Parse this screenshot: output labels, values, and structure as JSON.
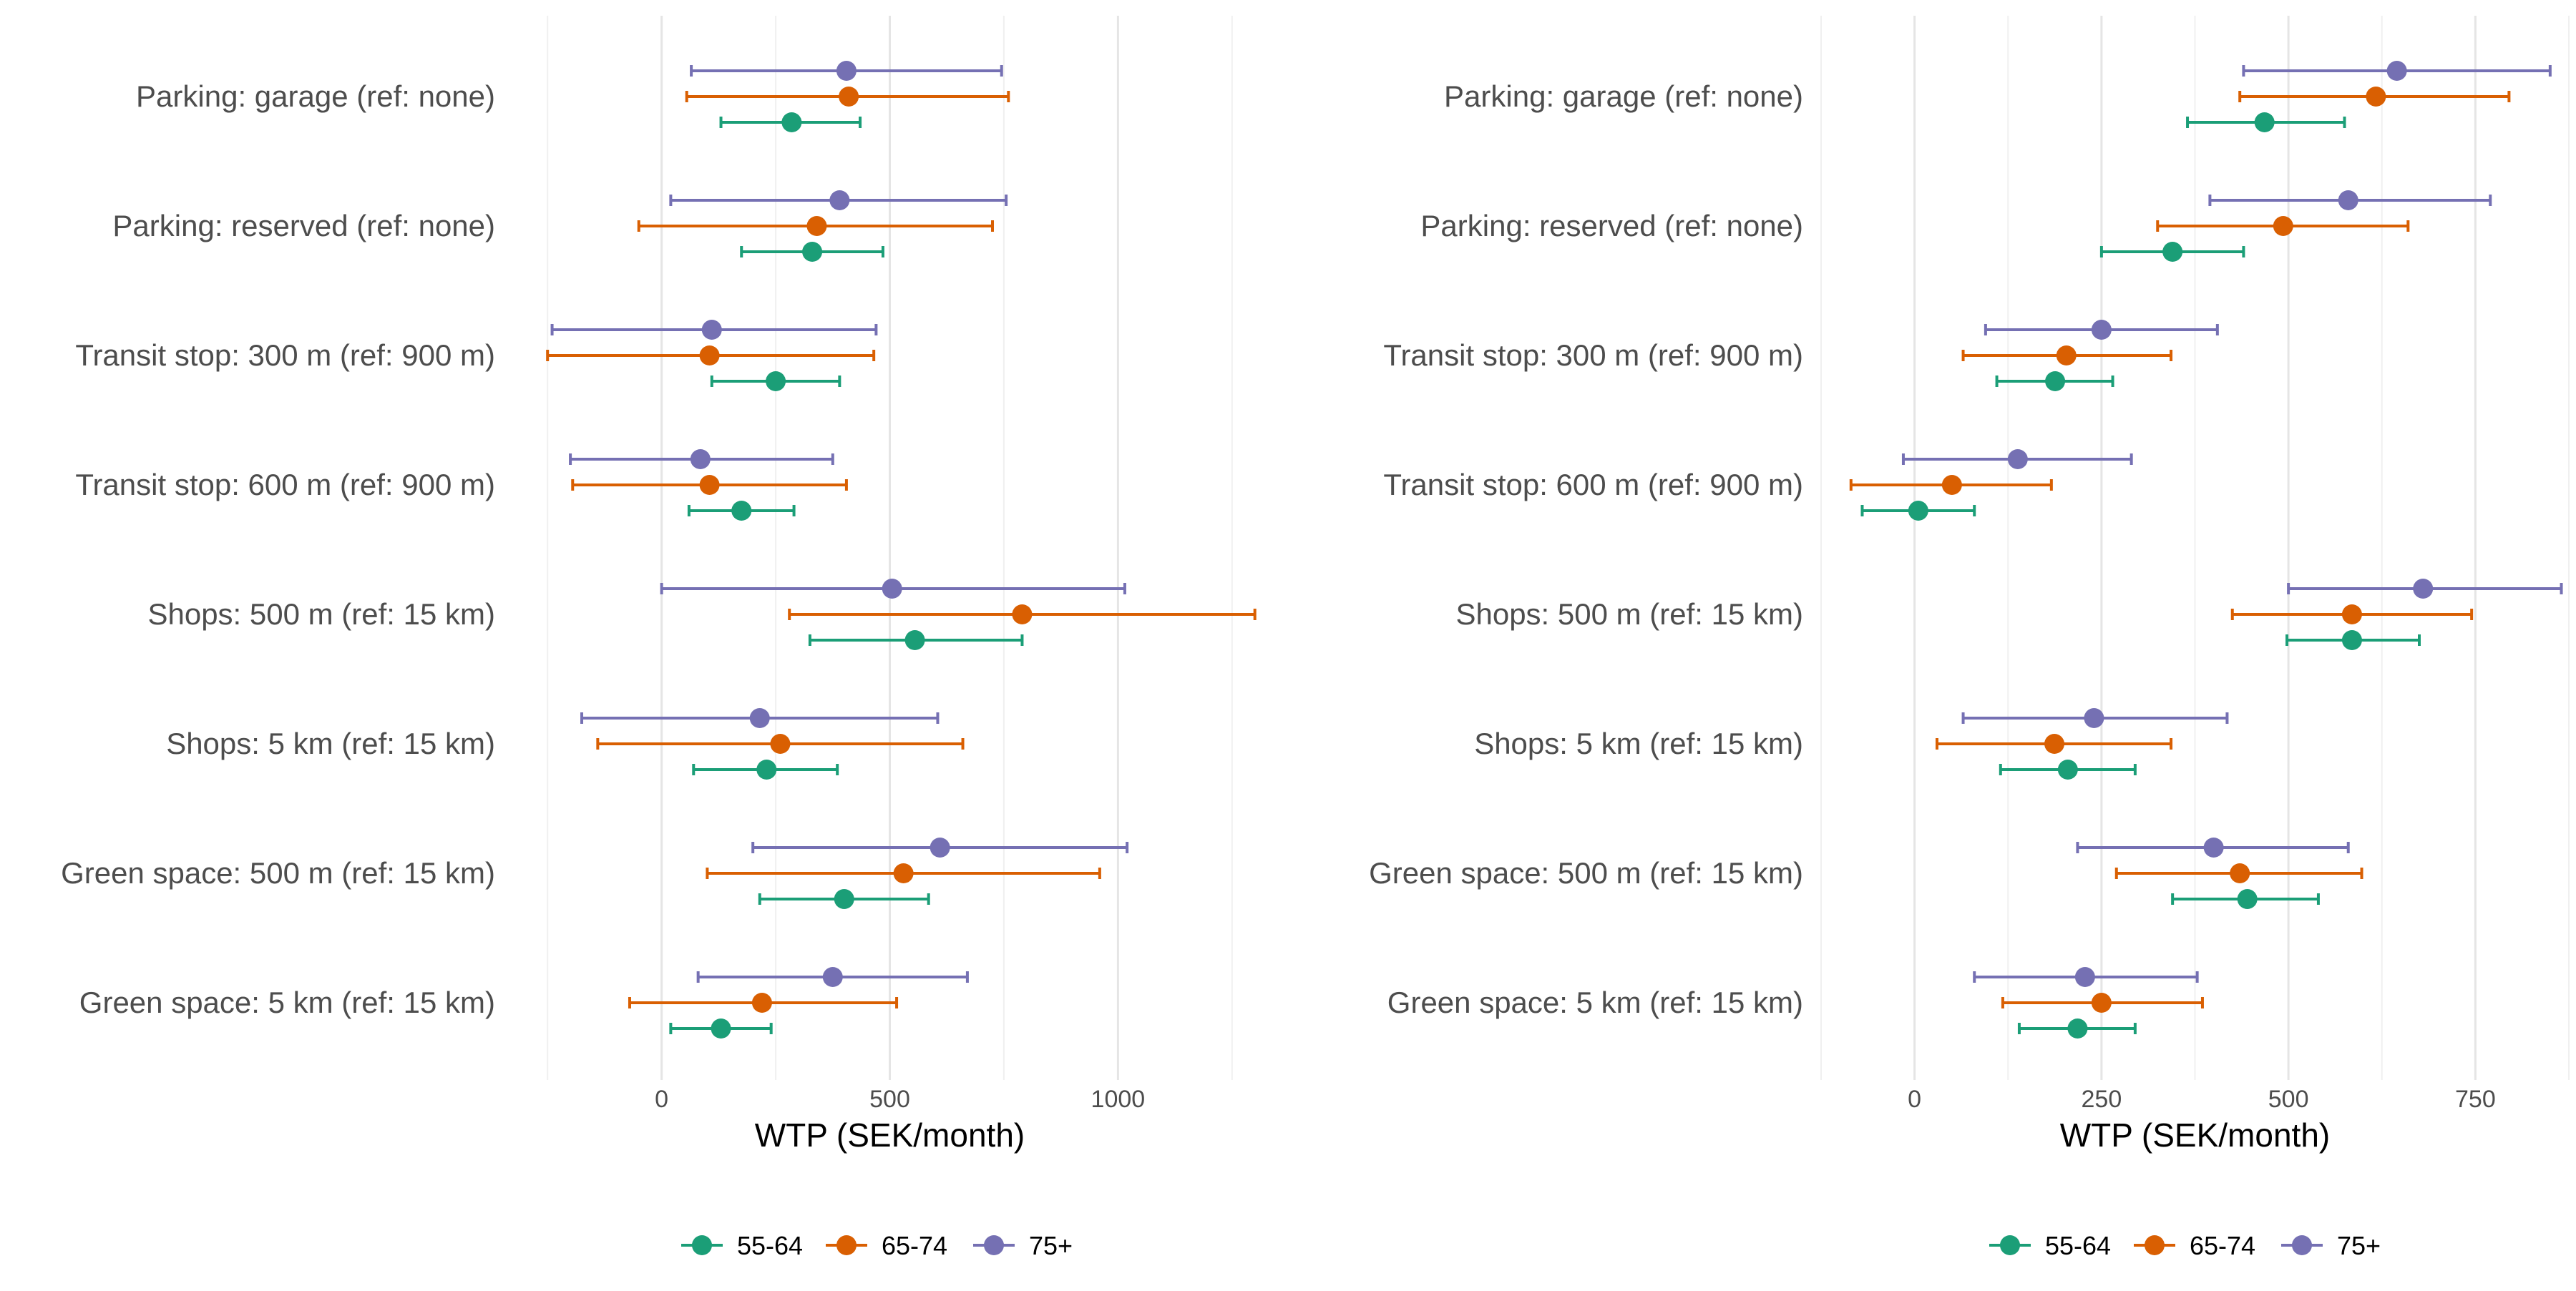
{
  "chart_data": [
    {
      "type": "forest",
      "xlabel": "WTP (SEK/month)",
      "xlim": [
        -255,
        1255
      ],
      "xticks": [
        0,
        500,
        1000
      ],
      "categories": [
        "Parking: garage (ref: none)",
        "Parking: reserved (ref: none)",
        "Transit stop: 300 m (ref: 900 m)",
        "Transit stop: 600 m (ref: 900 m)",
        "Shops: 500 m (ref: 15 km)",
        "Shops: 5 km (ref: 15 km)",
        "Green space: 500 m (ref: 15 km)",
        "Green space: 5 km (ref: 15 km)"
      ],
      "series": [
        {
          "name": "55-64",
          "color": "#1b9e77",
          "estimates": [
            285,
            330,
            250,
            175,
            555,
            230,
            400,
            130
          ],
          "lower": [
            130,
            175,
            110,
            60,
            325,
            70,
            215,
            20
          ],
          "upper": [
            435,
            485,
            390,
            290,
            790,
            385,
            585,
            240
          ]
        },
        {
          "name": "65-74",
          "color": "#d95f02",
          "estimates": [
            410,
            340,
            105,
            105,
            790,
            260,
            530,
            220
          ],
          "lower": [
            55,
            -50,
            -250,
            -195,
            280,
            -140,
            100,
            -70
          ],
          "upper": [
            760,
            725,
            465,
            405,
            1300,
            660,
            960,
            515
          ]
        },
        {
          "name": "75+",
          "color": "#7570b3",
          "estimates": [
            405,
            390,
            110,
            85,
            505,
            215,
            610,
            375
          ],
          "lower": [
            65,
            20,
            -240,
            -200,
            0,
            -175,
            200,
            80
          ],
          "upper": [
            745,
            755,
            470,
            375,
            1015,
            605,
            1020,
            670
          ]
        }
      ]
    },
    {
      "type": "forest",
      "xlabel": "WTP (SEK/month)",
      "xlim": [
        -125,
        875
      ],
      "xticks": [
        0,
        250,
        500,
        750
      ],
      "categories": [
        "Parking: garage (ref: none)",
        "Parking: reserved (ref: none)",
        "Transit stop: 300 m (ref: 900 m)",
        "Transit stop: 600 m (ref: 900 m)",
        "Shops: 500 m (ref: 15 km)",
        "Shops: 5 km (ref: 15 km)",
        "Green space: 500 m (ref: 15 km)",
        "Green space: 5 km (ref: 15 km)"
      ],
      "series": [
        {
          "name": "55-64",
          "color": "#1b9e77",
          "estimates": [
            468,
            345,
            188,
            5,
            585,
            205,
            445,
            218
          ],
          "lower": [
            365,
            250,
            110,
            -70,
            498,
            115,
            345,
            140
          ],
          "upper": [
            575,
            440,
            265,
            80,
            675,
            295,
            540,
            295
          ]
        },
        {
          "name": "65-74",
          "color": "#d95f02",
          "estimates": [
            617,
            493,
            203,
            50,
            585,
            187,
            435,
            250
          ],
          "lower": [
            435,
            325,
            65,
            -85,
            425,
            30,
            270,
            118
          ],
          "upper": [
            795,
            660,
            343,
            183,
            745,
            343,
            598,
            385
          ]
        },
        {
          "name": "75+",
          "color": "#7570b3",
          "estimates": [
            645,
            580,
            250,
            138,
            680,
            240,
            400,
            228
          ],
          "lower": [
            440,
            395,
            95,
            -15,
            500,
            65,
            218,
            80
          ],
          "upper": [
            850,
            770,
            405,
            290,
            865,
            418,
            580,
            378
          ]
        }
      ]
    }
  ],
  "legend": [
    {
      "label": "55-64",
      "color": "#1b9e77"
    },
    {
      "label": "65-74",
      "color": "#d95f02"
    },
    {
      "label": "75+",
      "color": "#7570b3"
    }
  ]
}
